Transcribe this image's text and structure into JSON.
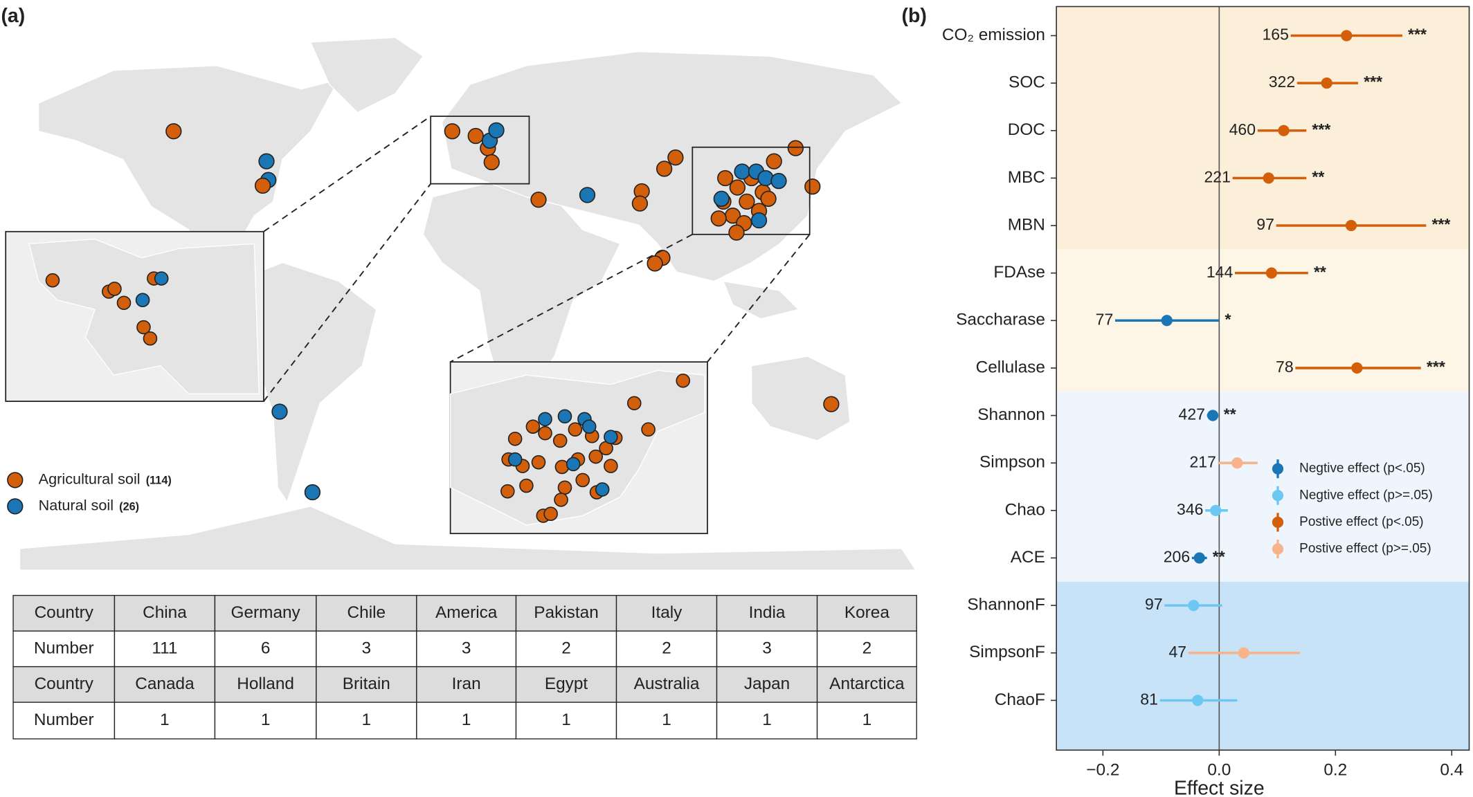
{
  "panel_a": {
    "label": "(a)",
    "legend": [
      {
        "name": "Agricultural soil",
        "count": "(114)",
        "color": "#d35f0b"
      },
      {
        "name": "Natural soil",
        "count": "(26)",
        "color": "#1a76b5"
      }
    ],
    "table": {
      "rows": [
        [
          "Country",
          "China",
          "Germany",
          "Chile",
          "America",
          "Pakistan",
          "Italy",
          "India",
          "Korea"
        ],
        [
          "Number",
          "111",
          "6",
          "3",
          "3",
          "2",
          "2",
          "3",
          "2"
        ],
        [
          "Country",
          "Canada",
          "Holland",
          "Britain",
          "Iran",
          "Egypt",
          "Australia",
          "Japan",
          "Antarctica"
        ],
        [
          "Number",
          "1",
          "1",
          "1",
          "1",
          "1",
          "1",
          "1",
          "1"
        ]
      ]
    }
  },
  "chart_data": {
    "type": "forest",
    "panel_label": "(b)",
    "xlabel": "Effect size",
    "categories": [
      "CO₂ emission",
      "SOC",
      "DOC",
      "MBC",
      "MBN",
      "FDAse",
      "Saccharase",
      "Cellulase",
      "Shannon",
      "Simpson",
      "Chao",
      "ACE",
      "ShannonF",
      "SimpsonF",
      "ChaoF"
    ],
    "values": [
      0.219,
      0.185,
      0.111,
      0.085,
      0.227,
      0.09,
      -0.09,
      0.237,
      -0.011,
      0.031,
      -0.006,
      -0.034,
      -0.044,
      0.042,
      -0.037
    ],
    "ci_low": [
      0.123,
      0.134,
      0.066,
      0.023,
      0.098,
      0.027,
      -0.179,
      0.131,
      -0.021,
      -0.002,
      -0.024,
      -0.047,
      -0.094,
      -0.053,
      -0.102
    ],
    "ci_high": [
      0.315,
      0.239,
      0.15,
      0.15,
      0.356,
      0.153,
      0.0,
      0.347,
      -0.002,
      0.066,
      0.015,
      -0.021,
      0.005,
      0.139,
      0.031
    ],
    "n": [
      165,
      322,
      460,
      221,
      97,
      144,
      77,
      78,
      427,
      217,
      346,
      206,
      97,
      47,
      81
    ],
    "stars": [
      "***",
      "***",
      "***",
      "**",
      "***",
      "**",
      "*",
      "***",
      "**",
      null,
      null,
      "**",
      null,
      null,
      null
    ],
    "colors": [
      "#d35f0b",
      "#d35f0b",
      "#d35f0b",
      "#d35f0b",
      "#d35f0b",
      "#d35f0b",
      "#1a76b5",
      "#d35f0b",
      "#1a76b5",
      "#f7b48a",
      "#6cc8f2",
      "#1a76b5",
      "#6cc8f2",
      "#f7b48a",
      "#6cc8f2"
    ],
    "legend": [
      {
        "name": "Negtive effect (p<.05)",
        "color": "#1a76b5"
      },
      {
        "name": "Negtive effect (p>=.05)",
        "color": "#6cc8f2"
      },
      {
        "name": "Postive effect (p<.05)",
        "color": "#d35f0b"
      },
      {
        "name": "Postive effect (p>=.05)",
        "color": "#f7b48a"
      }
    ],
    "xlim": [
      -0.28,
      0.43
    ],
    "xticks": [
      {
        "value": -0.2,
        "label": "−0.2"
      },
      {
        "value": 0,
        "label": "0.0"
      },
      0.2,
      0.4
    ]
  }
}
